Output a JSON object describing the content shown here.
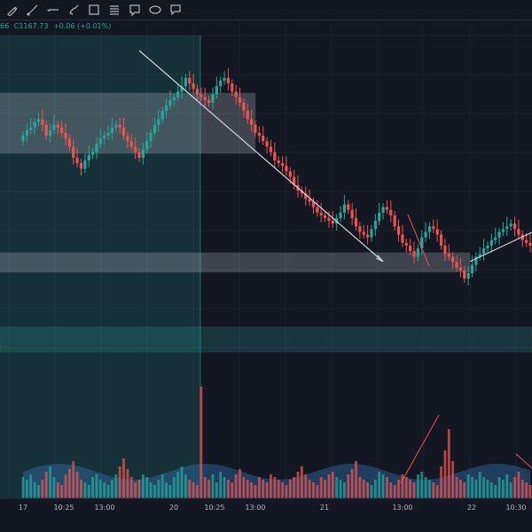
{
  "toolbar": {
    "tools": [
      {
        "name": "pencil-tool-icon"
      },
      {
        "name": "trend-line-tool-icon"
      },
      {
        "name": "horizontal-ray-tool-icon"
      },
      {
        "name": "brush-tool-icon"
      },
      {
        "name": "rectangle-tool-icon"
      },
      {
        "name": "fib-retracement-tool-icon"
      },
      {
        "name": "text-note-tool-icon"
      },
      {
        "name": "ellipse-tool-icon"
      },
      {
        "name": "callout-tool-icon"
      }
    ]
  },
  "legend": {
    "partial_prefix": "66",
    "close": "C1167.73",
    "change": "+0.06 (+0.01%)"
  },
  "colors": {
    "up": "#26a69a",
    "down": "#ef5350",
    "background": "#131722",
    "grid": "#1e2230",
    "zone_gray": "#d9dde6",
    "zone_green": "#26a69a",
    "volume_area": "#2f6fa8",
    "trend_line": "#d1d4dc",
    "red_line": "#ef5350"
  },
  "time_axis": {
    "labels": [
      "17",
      "10:25",
      "13:00",
      "20",
      "10:25",
      "13:00",
      "21",
      "13:00",
      "22",
      "10:30"
    ]
  },
  "chart_data": {
    "type": "candlestick",
    "title": "",
    "xlabel": "",
    "ylabel": "",
    "ylim": [
      0,
      100
    ],
    "note": "price scale not visible; values on relative 0-100 scale",
    "candles_close": [
      70,
      72,
      73,
      75,
      76,
      74,
      70,
      72,
      74,
      73,
      71,
      69,
      66,
      62,
      60,
      58,
      61,
      63,
      64,
      67,
      69,
      70,
      71,
      73,
      74,
      73,
      70,
      68,
      66,
      64,
      62,
      65,
      68,
      71,
      74,
      76,
      79,
      81,
      83,
      84,
      86,
      88,
      91,
      89,
      87,
      85,
      84,
      83,
      82,
      85,
      88,
      90,
      91,
      89,
      86,
      84,
      82,
      79,
      76,
      74,
      71,
      70,
      68,
      66,
      64,
      61,
      60,
      59,
      57,
      55,
      52,
      50,
      49,
      47,
      46,
      44,
      42,
      41,
      40,
      39,
      38,
      40,
      42,
      45,
      43,
      40,
      37,
      35,
      34,
      33,
      36,
      39,
      42,
      44,
      43,
      41,
      37,
      34,
      31,
      30,
      28,
      26,
      29,
      33,
      35,
      37,
      36,
      34,
      30,
      27,
      26,
      24,
      22,
      21,
      18,
      20,
      23,
      26,
      27,
      29,
      30,
      32,
      33,
      35,
      36,
      37,
      38,
      36,
      34,
      32,
      31,
      30
    ],
    "volume": [
      8,
      7,
      9,
      6,
      5,
      7,
      10,
      12,
      8,
      6,
      5,
      9,
      11,
      14,
      10,
      7,
      6,
      5,
      8,
      9,
      7,
      6,
      5,
      7,
      9,
      12,
      15,
      11,
      8,
      6,
      7,
      9,
      8,
      6,
      5,
      7,
      9,
      6,
      5,
      8,
      10,
      12,
      9,
      7,
      6,
      5,
      42,
      8,
      7,
      9,
      6,
      10,
      8,
      7,
      6,
      9,
      11,
      8,
      7,
      6,
      5,
      8,
      7,
      6,
      9,
      8,
      7,
      6,
      5,
      7,
      8,
      10,
      12,
      9,
      7,
      6,
      5,
      8,
      7,
      9,
      10,
      8,
      7,
      6,
      9,
      11,
      14,
      8,
      7,
      6,
      5,
      7,
      10,
      9,
      8,
      6,
      5,
      7,
      9,
      8,
      7,
      6,
      9,
      10,
      8,
      7,
      6,
      5,
      12,
      18,
      26,
      14,
      8,
      7,
      6,
      9,
      8,
      7,
      10,
      8,
      7,
      6,
      5,
      8,
      7,
      9,
      6,
      8,
      10,
      7,
      6,
      5
    ],
    "zones": [
      {
        "label": "",
        "color": "gray"
      },
      {
        "label": "",
        "color": "gray"
      },
      {
        "label": "",
        "color": "green"
      }
    ],
    "highlight_session": "20"
  }
}
